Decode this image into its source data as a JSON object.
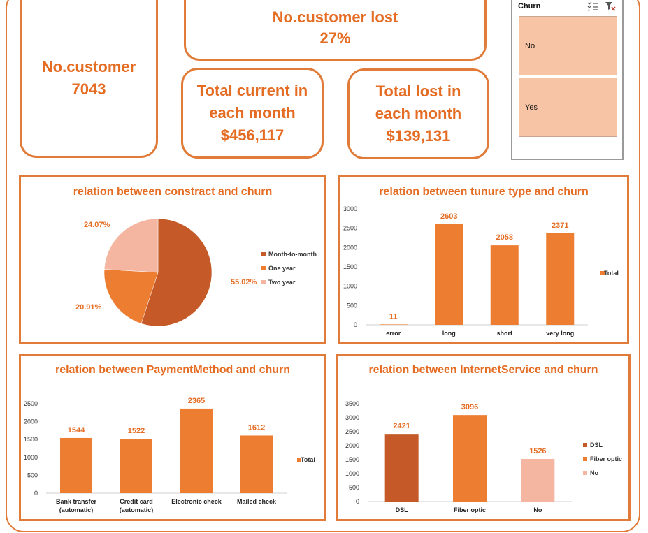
{
  "kpis": {
    "customers": {
      "title": "No.customer",
      "value": "7043"
    },
    "lost": {
      "title": "No.customer lost",
      "value": "27%"
    },
    "current_month": {
      "title_line1": "Total current in",
      "title_line2": "each month",
      "value": "$456,117"
    },
    "lost_month": {
      "title_line1": "Total lost in",
      "title_line2": "each month",
      "value": "$139,131"
    }
  },
  "slicer": {
    "title": "Churn",
    "items": [
      "No",
      "Yes"
    ],
    "multiselect_icon": "multi-select-icon",
    "clear_icon": "clear-filter-icon"
  },
  "chart_data": [
    {
      "type": "pie",
      "title": "relation between constract and churn",
      "categories": [
        "Month-to-month",
        "One year",
        "Two year"
      ],
      "values": [
        55.02,
        20.91,
        24.07
      ],
      "labels": [
        "55.02%",
        "20.91%",
        "24.07%"
      ],
      "colors": [
        "#C55A28",
        "#ED7D31",
        "#F4B6A0"
      ],
      "legend": "right"
    },
    {
      "type": "bar",
      "title": "relation between tunure type and churn",
      "categories": [
        "error",
        "long",
        "short",
        "very long"
      ],
      "series": [
        {
          "name": "Total",
          "values": [
            11,
            2603,
            2058,
            2371
          ]
        }
      ],
      "ylim": [
        0,
        3000
      ],
      "yticks": [
        0,
        500,
        1000,
        1500,
        2000,
        2500,
        3000
      ],
      "color": "#ED7D31",
      "legend": "right"
    },
    {
      "type": "bar",
      "title": "relation between PaymentMethod and churn",
      "categories": [
        [
          "Bank transfer",
          "(automatic)"
        ],
        [
          "Credit card",
          "(automatic)"
        ],
        [
          "Electronic check"
        ],
        [
          "Mailed check"
        ]
      ],
      "series": [
        {
          "name": "Total",
          "values": [
            1544,
            1522,
            2365,
            1612
          ]
        }
      ],
      "ylim": [
        0,
        2500
      ],
      "yticks": [
        0,
        500,
        1000,
        1500,
        2000,
        2500
      ],
      "color": "#ED7D31",
      "legend": "right"
    },
    {
      "type": "bar",
      "title": "relation between InternetService and churn",
      "categories": [
        "DSL",
        "Fiber optic",
        "No"
      ],
      "values": [
        2421,
        3096,
        1526
      ],
      "colors": [
        "#C55A28",
        "#ED7D31",
        "#F4B6A0"
      ],
      "ylim": [
        0,
        3500
      ],
      "yticks": [
        0,
        500,
        1000,
        1500,
        2000,
        2500,
        3000,
        3500
      ],
      "legend_items": [
        "DSL",
        "Fiber optic",
        "No"
      ],
      "legend": "right"
    }
  ]
}
